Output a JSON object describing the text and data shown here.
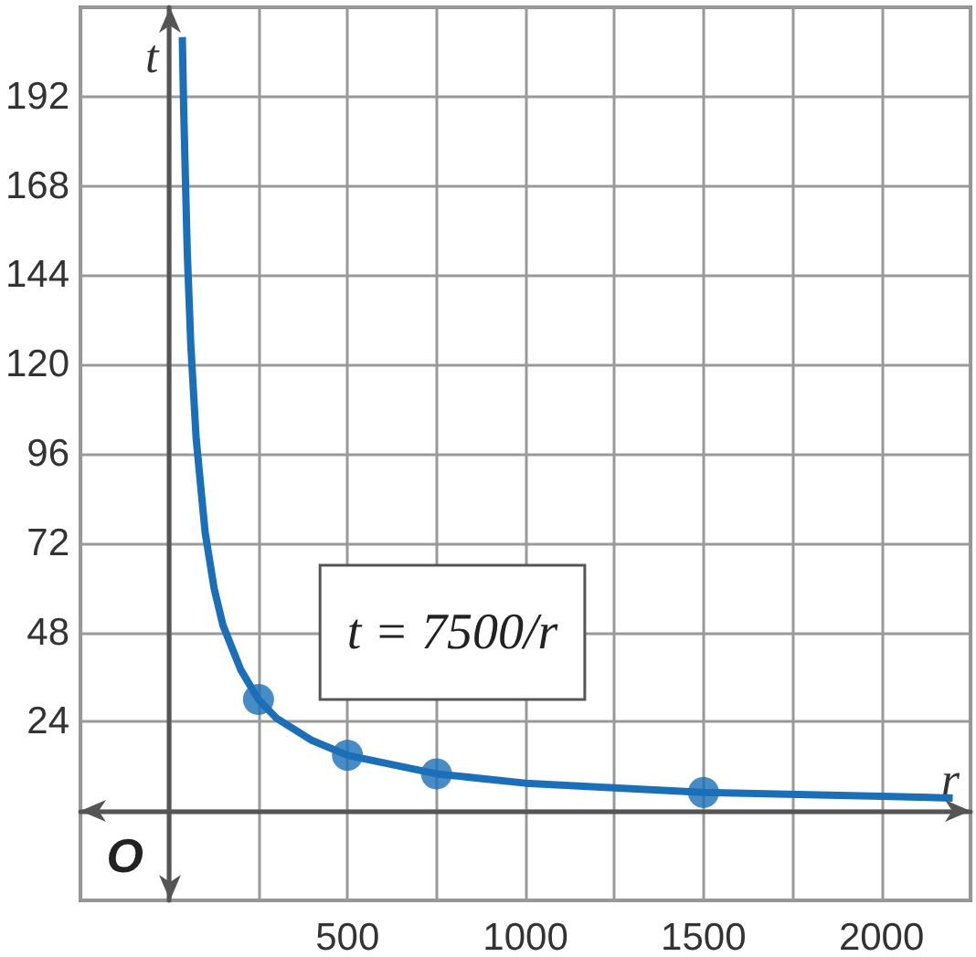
{
  "chart_data": {
    "type": "line",
    "xlabel": "r",
    "ylabel": "t",
    "annotations": [
      "O",
      "t = 7500/r"
    ],
    "xlim": [
      -250,
      2250
    ],
    "ylim": [
      -24,
      216
    ],
    "xticks": [
      {
        "value": -250,
        "label": null
      },
      {
        "value": 0,
        "label": null
      },
      {
        "value": 250,
        "label": null
      },
      500,
      {
        "value": 750,
        "label": null
      },
      1000,
      {
        "value": 1250,
        "label": null
      },
      1500,
      {
        "value": 1750,
        "label": null
      },
      2000,
      {
        "value": 2250,
        "label": null
      }
    ],
    "yticks": [
      {
        "value": -24,
        "label": null
      },
      {
        "value": 0,
        "label": null
      },
      24,
      48,
      72,
      96,
      120,
      144,
      168,
      192,
      {
        "value": 216,
        "label": null
      }
    ],
    "grid": true,
    "series": [
      {
        "color": "#1a6fb8",
        "marker": "none",
        "x": [
          36,
          40,
          50,
          60,
          75,
          100,
          125,
          150,
          200,
          250,
          300,
          400,
          500,
          750,
          1000,
          1500,
          2000,
          2200
        ],
        "values": [
          208,
          188,
          150,
          125,
          100,
          75,
          60,
          50,
          38,
          30,
          25,
          19,
          15,
          10,
          7.5,
          5,
          4,
          3.5
        ]
      },
      {
        "type": "scatter",
        "color": "#1a6fb8",
        "marker": "circle",
        "x": [
          250,
          500,
          750,
          1500
        ],
        "values": [
          30,
          15,
          10,
          5
        ]
      }
    ]
  }
}
